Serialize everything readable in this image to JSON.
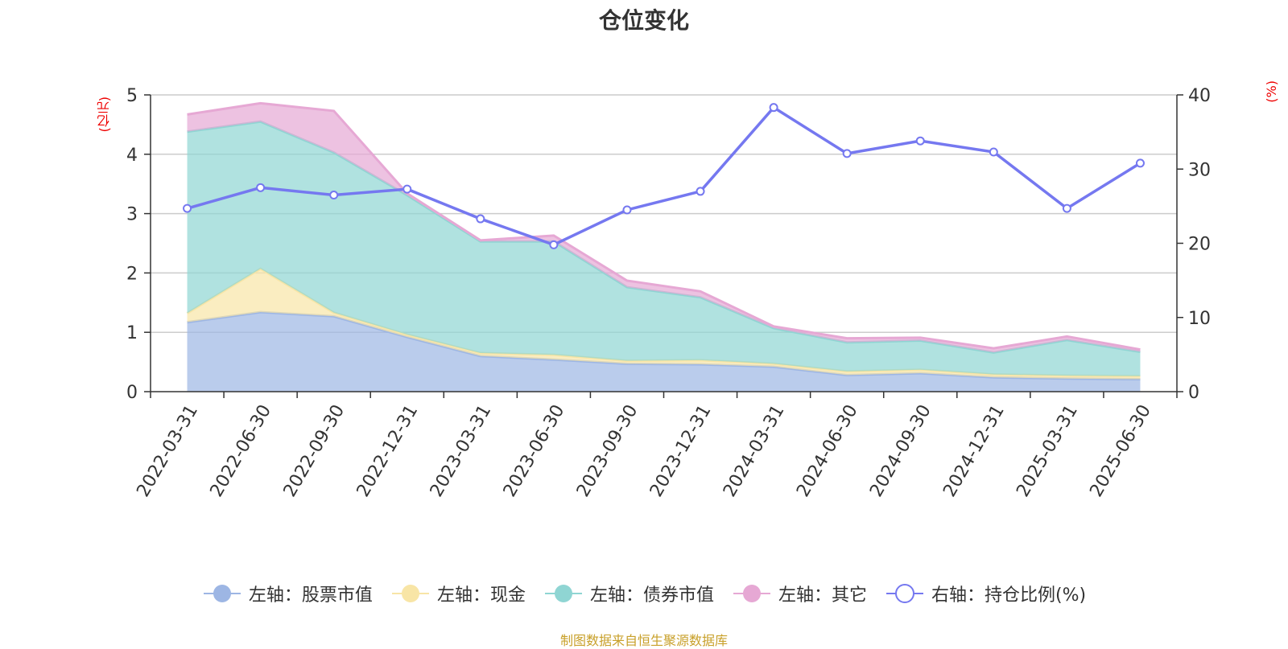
{
  "title": "仓位变化",
  "unit_left": "(亿元)",
  "unit_right": "(%)",
  "source": "制图数据来自恒生聚源数据库",
  "colors": {
    "stock": "#9db6e4",
    "cash": "#f8e5a6",
    "bond": "#8fd5d3",
    "other": "#e6a8d4",
    "ratio": "#7578f0"
  },
  "legend": [
    {
      "label": "左轴：股票市值",
      "key": "stock",
      "icon": "circle-filled-icon"
    },
    {
      "label": "左轴：现金",
      "key": "cash",
      "icon": "circle-filled-icon"
    },
    {
      "label": "左轴：债券市值",
      "key": "bond",
      "icon": "circle-filled-icon"
    },
    {
      "label": "左轴：其它",
      "key": "other",
      "icon": "circle-filled-icon"
    },
    {
      "label": "右轴：持仓比例(%)",
      "key": "ratio",
      "icon": "circle-outline-icon"
    }
  ],
  "chart_data": {
    "type": "area",
    "title": "仓位变化",
    "stacked": true,
    "categories": [
      "2022-03-31",
      "2022-06-30",
      "2022-09-30",
      "2022-12-31",
      "2023-03-31",
      "2023-06-30",
      "2023-09-30",
      "2023-12-31",
      "2024-03-31",
      "2024-06-30",
      "2024-09-30",
      "2024-12-31",
      "2025-03-31",
      "2025-06-30"
    ],
    "left_axis": {
      "label": "(亿元)",
      "range": [
        0,
        5
      ],
      "ticks": [
        0,
        1,
        2,
        3,
        4,
        5
      ]
    },
    "right_axis": {
      "label": "(%)",
      "range": [
        0,
        40
      ],
      "ticks": [
        0,
        10,
        20,
        30,
        40
      ]
    },
    "series": [
      {
        "name": "左轴：股票市值",
        "axis": "left",
        "type": "area",
        "values": [
          1.17,
          1.34,
          1.27,
          0.92,
          0.6,
          0.54,
          0.47,
          0.46,
          0.42,
          0.28,
          0.31,
          0.24,
          0.22,
          0.21
        ]
      },
      {
        "name": "左轴：现金",
        "axis": "left",
        "type": "area",
        "values": [
          0.15,
          0.73,
          0.06,
          0.04,
          0.05,
          0.08,
          0.05,
          0.07,
          0.05,
          0.06,
          0.06,
          0.05,
          0.05,
          0.05
        ]
      },
      {
        "name": "左轴：债券市值",
        "axis": "left",
        "type": "area",
        "values": [
          3.06,
          2.48,
          2.7,
          2.35,
          1.88,
          1.91,
          1.24,
          1.06,
          0.6,
          0.49,
          0.49,
          0.37,
          0.6,
          0.41
        ]
      },
      {
        "name": "左轴：其它",
        "axis": "left",
        "type": "area",
        "values": [
          0.29,
          0.31,
          0.7,
          0.03,
          0.02,
          0.1,
          0.11,
          0.1,
          0.03,
          0.07,
          0.05,
          0.07,
          0.06,
          0.04
        ]
      },
      {
        "name": "右轴：持仓比例(%)",
        "axis": "right",
        "type": "line",
        "values": [
          24.7,
          27.5,
          26.5,
          27.3,
          23.3,
          19.8,
          24.5,
          27.0,
          38.3,
          32.1,
          33.8,
          32.3,
          24.7,
          30.8
        ]
      }
    ],
    "grid": true,
    "legend_position": "bottom"
  }
}
